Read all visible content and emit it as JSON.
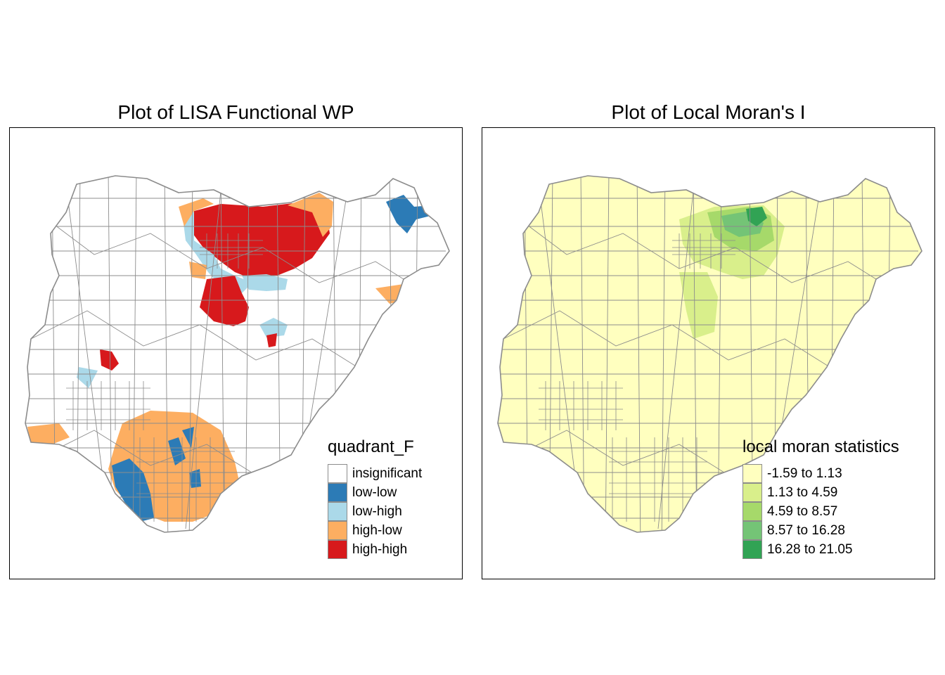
{
  "panels": [
    {
      "title": "Plot of LISA Functional WP",
      "legend": {
        "title": "quadrant_F",
        "items": [
          {
            "label": "insignificant",
            "color": "#ffffff"
          },
          {
            "label": "low-low",
            "color": "#2c7bb6"
          },
          {
            "label": "low-high",
            "color": "#abd9e9"
          },
          {
            "label": "high-low",
            "color": "#fdae61"
          },
          {
            "label": "high-high",
            "color": "#d7191c"
          }
        ]
      }
    },
    {
      "title": "Plot of Local Moran's I",
      "legend": {
        "title": "local moran statistics",
        "items": [
          {
            "label": "-1.59 to 1.13",
            "color": "#ffffbf"
          },
          {
            "label": "1.13 to 4.59",
            "color": "#d9ef8b"
          },
          {
            "label": "4.59 to 8.57",
            "color": "#a6d96a"
          },
          {
            "label": "8.57 to 16.28",
            "color": "#74c476"
          },
          {
            "label": "16.28 to 21.05",
            "color": "#31a354"
          }
        ]
      }
    }
  ],
  "styles": {
    "boundary_color": "#8c8c8c",
    "frame_color": "#000000"
  }
}
